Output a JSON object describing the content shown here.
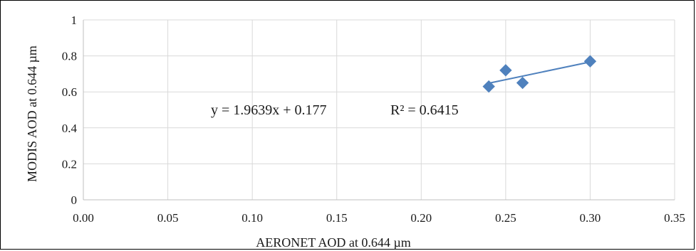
{
  "chart_data": {
    "type": "scatter",
    "xlabel": "AERONET AOD at 0.644 µm",
    "ylabel": "MODIS AOD at 0.644 µm",
    "xlim": [
      0,
      0.35
    ],
    "ylim": [
      0,
      1
    ],
    "x_ticks": [
      "0.00",
      "0.05",
      "0.10",
      "0.15",
      "0.20",
      "0.25",
      "0.30",
      "0.35"
    ],
    "y_ticks": [
      "0",
      "0.2",
      "0.4",
      "0.6",
      "0.8",
      "1"
    ],
    "grid": true,
    "series": [
      {
        "marker": "diamond",
        "color": "#4F81BD",
        "points": [
          {
            "x": 0.24,
            "y": 0.63
          },
          {
            "x": 0.25,
            "y": 0.72
          },
          {
            "x": 0.26,
            "y": 0.65
          },
          {
            "x": 0.3,
            "y": 0.77
          }
        ]
      }
    ],
    "trendline": {
      "type": "linear",
      "x_range": [
        0.24,
        0.3
      ],
      "color": "#4F81BD"
    },
    "annotations": [
      {
        "text": "y = 1.9639x + 0.177"
      },
      {
        "text": "R² = 0.6415"
      }
    ]
  }
}
